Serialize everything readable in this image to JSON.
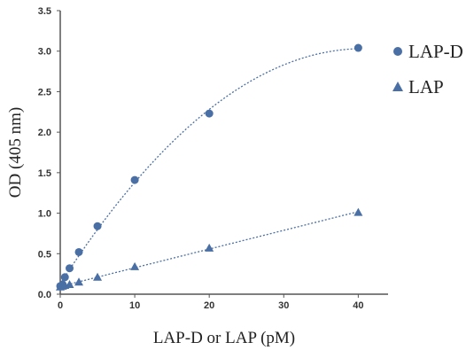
{
  "chart_data": {
    "type": "scatter",
    "title": "",
    "xlabel": "LAP-D or LAP (pM)",
    "ylabel": "OD (405 nm)",
    "xlim": [
      0,
      44
    ],
    "ylim": [
      0,
      3.5
    ],
    "xticks": [
      0,
      10,
      20,
      30,
      40
    ],
    "xtick_labels": [
      "0",
      "10",
      "20",
      "30",
      "40"
    ],
    "yticks": [
      0,
      0.5,
      1.0,
      1.5,
      2.0,
      2.5,
      3.0,
      3.5
    ],
    "ytick_labels": [
      "0.0",
      "0.5",
      "1.0",
      "1.5",
      "2.0",
      "2.5",
      "3.0",
      "3.5"
    ],
    "grid": false,
    "legend_position": "right",
    "series": [
      {
        "name": "LAP-D",
        "marker": "circle",
        "color": "#4a6fa5",
        "trendline": "polynomial",
        "x": [
          0,
          0.3125,
          0.625,
          1.25,
          2.5,
          5,
          10,
          20,
          40
        ],
        "y": [
          0.1,
          0.12,
          0.21,
          0.32,
          0.52,
          0.84,
          1.41,
          2.23,
          3.04
        ]
      },
      {
        "name": "LAP",
        "marker": "triangle",
        "color": "#4a6fa5",
        "trendline": "linear",
        "x": [
          0,
          0.3125,
          0.625,
          1.25,
          2.5,
          5,
          10,
          20,
          40
        ],
        "y": [
          0.09,
          0.1,
          0.11,
          0.12,
          0.15,
          0.21,
          0.34,
          0.57,
          1.01
        ]
      }
    ]
  }
}
